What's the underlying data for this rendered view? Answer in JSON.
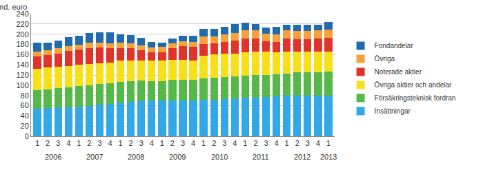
{
  "chart_data": {
    "type": "bar",
    "stacked": true,
    "ylabel": "md. euro",
    "categories": [
      "1",
      "2",
      "3",
      "4",
      "1",
      "2",
      "3",
      "4",
      "1",
      "2",
      "3",
      "4",
      "1",
      "2",
      "3",
      "4",
      "1",
      "2",
      "3",
      "4",
      "1",
      "2",
      "3",
      "4",
      "1",
      "2",
      "3",
      "4",
      "1"
    ],
    "years": [
      "2006",
      "2006",
      "2006",
      "2006",
      "2007",
      "2007",
      "2007",
      "2007",
      "2008",
      "2008",
      "2008",
      "2008",
      "2009",
      "2009",
      "2009",
      "2009",
      "2010",
      "2010",
      "2010",
      "2010",
      "2011",
      "2011",
      "2011",
      "2011",
      "2012",
      "2012",
      "2012",
      "2012",
      "2013"
    ],
    "ylim": [
      0,
      240
    ],
    "yticks": [
      0,
      20,
      40,
      60,
      80,
      100,
      120,
      140,
      160,
      180,
      200,
      220,
      240
    ],
    "grid": true,
    "legend": "right",
    "series": [
      {
        "name": "Insättningar",
        "color": "#33a8e6",
        "values": [
          54,
          55,
          56,
          57,
          58,
          60,
          62,
          64,
          66,
          68,
          69,
          70,
          70,
          70,
          70,
          70,
          71,
          72,
          73,
          74,
          75,
          76,
          77,
          78,
          79,
          80,
          80,
          80,
          80
        ]
      },
      {
        "name": "Försäkringsteknisk fordran",
        "color": "#56b849",
        "values": [
          36,
          37,
          38,
          39,
          40,
          40,
          40,
          40,
          40,
          40,
          40,
          38,
          38,
          40,
          41,
          40,
          42,
          42,
          43,
          43,
          44,
          44,
          43,
          43,
          44,
          45,
          45,
          46,
          47
        ]
      },
      {
        "name": "Övriga aktier och andelar",
        "color": "#f7e01a",
        "values": [
          42,
          43,
          42,
          42,
          42,
          41,
          41,
          40,
          42,
          40,
          39,
          40,
          40,
          40,
          39,
          38,
          45,
          46,
          46,
          45,
          45,
          46,
          46,
          43,
          43,
          41,
          41,
          40,
          39
        ]
      },
      {
        "name": "Noterade aktier",
        "color": "#e0332c",
        "values": [
          24,
          24,
          26,
          29,
          30,
          32,
          31,
          28,
          25,
          24,
          20,
          16,
          17,
          22,
          26,
          27,
          23,
          22,
          23,
          26,
          28,
          26,
          20,
          21,
          25,
          24,
          24,
          25,
          27
        ]
      },
      {
        "name": "Övriga",
        "color": "#f7a13a",
        "values": [
          10,
          10,
          10,
          10,
          10,
          10,
          10,
          10,
          10,
          10,
          10,
          10,
          10,
          10,
          10,
          10,
          14,
          14,
          14,
          14,
          15,
          15,
          15,
          15,
          16,
          16,
          16,
          16,
          16
        ]
      },
      {
        "name": "Fondandelar",
        "color": "#1f6bb0",
        "values": [
          18,
          15,
          16,
          17,
          17,
          19,
          20,
          21,
          16,
          16,
          15,
          11,
          9,
          10,
          11,
          12,
          15,
          14,
          16,
          18,
          15,
          13,
          12,
          14,
          12,
          12,
          13,
          12,
          15
        ]
      }
    ]
  }
}
